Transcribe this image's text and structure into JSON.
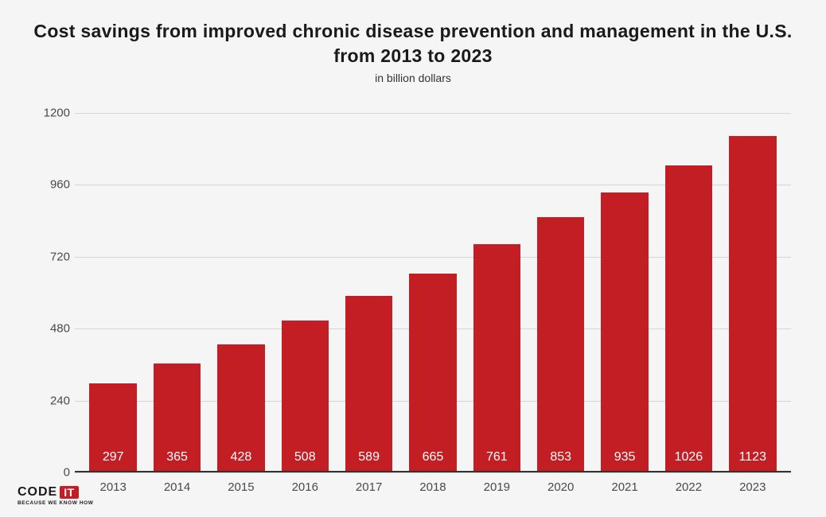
{
  "chart": {
    "type": "bar",
    "title": "Cost savings from improved chronic disease prevention and management in the U.S. from 2013 to 2023",
    "subtitle": "in billion dollars",
    "categories": [
      "2013",
      "2014",
      "2015",
      "2016",
      "2017",
      "2018",
      "2019",
      "2020",
      "2021",
      "2022",
      "2023"
    ],
    "values": [
      297,
      365,
      428,
      508,
      589,
      665,
      761,
      853,
      935,
      1026,
      1123
    ],
    "bar_color": "#c41e25",
    "label_color": "#ffffff",
    "value_label_fontsize": 16,
    "title_fontsize": 23,
    "subtitle_fontsize": 14,
    "axis_fontsize": 15,
    "ylim": [
      0,
      1200
    ],
    "ytick_step": 240,
    "yticks": [
      0,
      240,
      480,
      720,
      960,
      1200
    ],
    "background_color": "#f5f5f5",
    "grid_color": "#d6d6d6",
    "baseline_color": "#333333",
    "text_color": "#4a4a4a",
    "bar_width_ratio": 0.74
  },
  "logo": {
    "text_code": "CODE",
    "text_it": "IT",
    "tagline": "BECAUSE WE KNOW HOW",
    "accent_color": "#c41e25"
  }
}
